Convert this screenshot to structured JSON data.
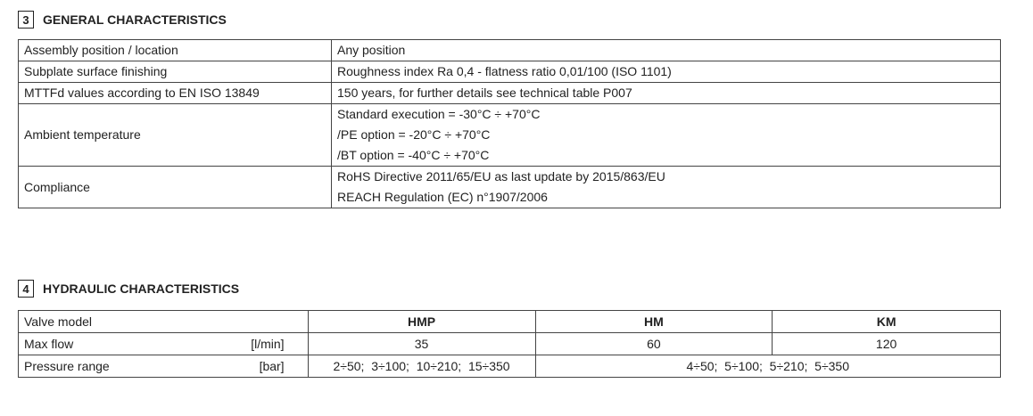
{
  "general": {
    "number": "3",
    "title": "GENERAL CHARACTERISTICS",
    "rows": [
      {
        "label": "Assembly position / location",
        "value": [
          "Any position"
        ]
      },
      {
        "label": "Subplate surface finishing",
        "value": [
          "Roughness index Ra 0,4 - flatness ratio 0,01/100 (ISO 1101)"
        ]
      },
      {
        "label": "MTTFd values according to EN ISO 13849",
        "value": [
          "150 years, for further details see technical table P007"
        ]
      },
      {
        "label": "Ambient temperature",
        "value": [
          "Standard execution = -30°C ÷ +70°C",
          "/PE option = -20°C ÷ +70°C",
          "/BT option = -40°C ÷ +70°C"
        ]
      },
      {
        "label": "Compliance",
        "value": [
          "RoHS Directive 2011/65/EU as last update by 2015/863/EU",
          "REACH Regulation (EC) n°1907/2006"
        ]
      }
    ]
  },
  "hydraulic": {
    "number": "4",
    "title": "HYDRAULIC CHARACTERISTICS",
    "header": {
      "label": "Valve model",
      "models": [
        "HMP",
        "HM",
        "KM"
      ]
    },
    "max_flow": {
      "label": "Max flow",
      "unit": "[l/min]",
      "values": [
        "35",
        "60",
        "120"
      ]
    },
    "pressure": {
      "label": "Pressure range",
      "unit": "[bar]",
      "hmp": "2÷50;  3÷100;  10÷210;  15÷350",
      "hm_km": "4÷50;  5÷100;  5÷210;  5÷350"
    }
  }
}
